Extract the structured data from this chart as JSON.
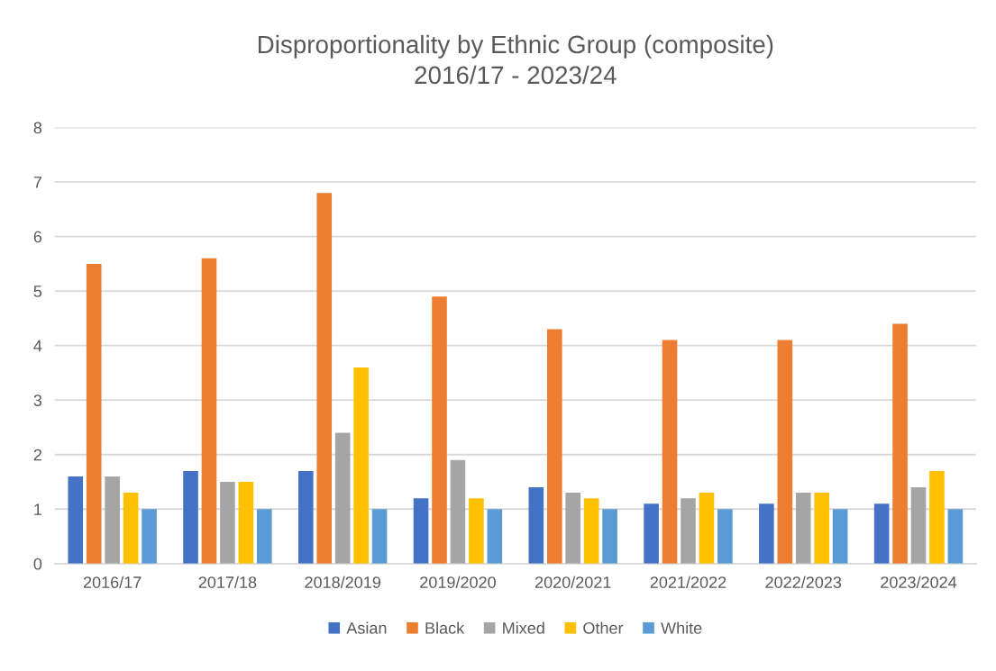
{
  "chart_data": {
    "type": "bar",
    "title": "Disproportionality by Ethnic Group (composite)\n2016/17 - 2023/24",
    "categories": [
      "2016/17",
      "2017/18",
      "2018/2019",
      "2019/2020",
      "2020/2021",
      "2021/2022",
      "2022/2023",
      "2023/2024"
    ],
    "series": [
      {
        "name": "Asian",
        "color": "#4472c4",
        "values": [
          1.6,
          1.7,
          1.7,
          1.2,
          1.4,
          1.1,
          1.1,
          1.1
        ]
      },
      {
        "name": "Black",
        "color": "#ed7d31",
        "values": [
          5.5,
          5.6,
          6.8,
          4.9,
          4.3,
          4.1,
          4.1,
          4.4
        ]
      },
      {
        "name": "Mixed",
        "color": "#a5a5a5",
        "values": [
          1.6,
          1.5,
          2.4,
          1.9,
          1.3,
          1.2,
          1.3,
          1.4
        ]
      },
      {
        "name": "Other",
        "color": "#ffc000",
        "values": [
          1.3,
          1.5,
          3.6,
          1.2,
          1.2,
          1.3,
          1.3,
          1.7
        ]
      },
      {
        "name": "White",
        "color": "#5b9bd5",
        "values": [
          1.0,
          1.0,
          1.0,
          1.0,
          1.0,
          1.0,
          1.0,
          1.0
        ]
      }
    ],
    "ylim": [
      0,
      8
    ],
    "yticks": [
      0,
      1,
      2,
      3,
      4,
      5,
      6,
      7,
      8
    ],
    "grid": "y",
    "legend": "bottom"
  }
}
